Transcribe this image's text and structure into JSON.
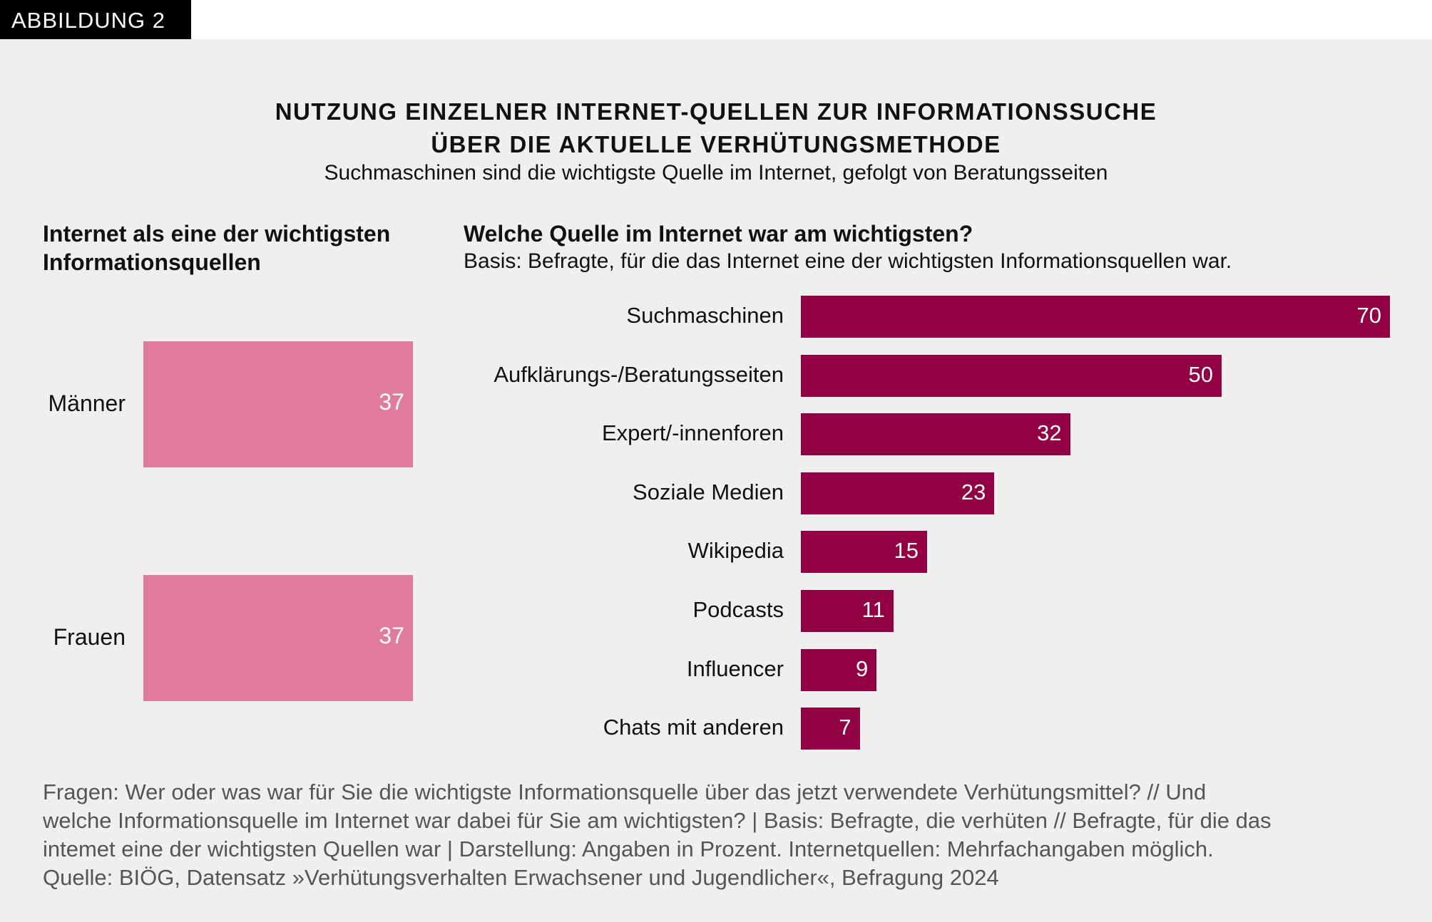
{
  "figure_label": "ABBILDUNG 2",
  "title_line1": "NUTZUNG EINZELNER INTERNET-QUELLEN ZUR INFORMATIONSSUCHE",
  "title_line2": "ÜBER DIE AKTUELLE VERHÜTUNGSMETHODE",
  "subtitle": "Suchmaschinen sind die wichtigste Quelle im Internet, gefolgt von Beratungsseiten",
  "footer": [
    "Fragen: Wer oder was war für Sie die wichtigste Informationsquelle über das jetzt verwendete Verhütungsmittel? // Und",
    "welche Informationsquelle im Internet war dabei für Sie am wichtigsten? | Basis: Befragte, die verhüten // Befragte, für die das",
    "intemet eine der wichtigsten Quellen war | Darstellung: Angaben in Prozent. Internetquellen: Mehrfachangaben möglich.",
    "Quelle: BIÖG, Datensatz »Verhütungsverhalten Erwachsener und Jugendlicher«, Befragung 2024"
  ],
  "chart_data": [
    {
      "type": "bar",
      "orientation": "horizontal",
      "title_line1": "Internet als eine der wichtigsten",
      "title_line2": "Informationsquellen",
      "categories": [
        "Männer",
        "Frauen"
      ],
      "values": [
        37,
        37
      ],
      "xlim": [
        0,
        37
      ],
      "color": "#e07b9f",
      "grid": false
    },
    {
      "type": "bar",
      "orientation": "horizontal",
      "title": "Welche Quelle im Internet war am wichtigsten?",
      "note": "Basis: Befragte, für die das Internet eine der wichtigsten Informationsquellen war.",
      "categories": [
        "Suchmaschinen",
        "Aufklärungs-/Beratungsseiten",
        "Expert/-innenforen",
        "Soziale Medien",
        "Wikipedia",
        "Podcasts",
        "Influencer",
        "Chats mit anderen"
      ],
      "values": [
        70,
        50,
        32,
        23,
        15,
        11,
        9,
        7
      ],
      "xlim": [
        0,
        70
      ],
      "color": "#900042",
      "grid": false
    }
  ]
}
